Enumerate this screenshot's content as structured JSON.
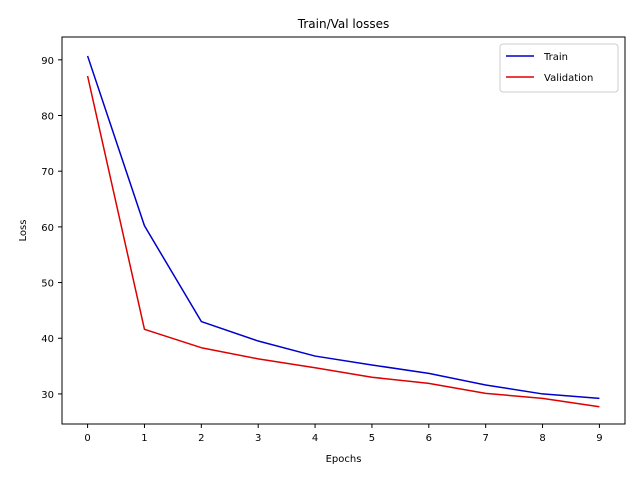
{
  "chart_data": {
    "type": "line",
    "title": "Train/Val losses",
    "xlabel": "Epochs",
    "ylabel": "Loss",
    "x": [
      0,
      1,
      2,
      3,
      4,
      5,
      6,
      7,
      8,
      9
    ],
    "xlim": [
      -0.45,
      9.45
    ],
    "ylim": [
      24.6,
      94.1
    ],
    "xticks": [
      0,
      1,
      2,
      3,
      4,
      5,
      6,
      7,
      8,
      9
    ],
    "yticks": [
      30,
      40,
      50,
      60,
      70,
      80,
      90
    ],
    "grid": false,
    "legend_position": "top-right",
    "series": [
      {
        "name": "Train",
        "color": "#0000cc",
        "values": [
          90.7,
          60.2,
          43.0,
          39.5,
          36.8,
          35.2,
          33.7,
          31.6,
          30.0,
          29.2
        ]
      },
      {
        "name": "Validation",
        "color": "#dd0000",
        "values": [
          87.1,
          41.6,
          38.3,
          36.3,
          34.7,
          33.0,
          31.9,
          30.1,
          29.2,
          27.7
        ]
      }
    ]
  }
}
